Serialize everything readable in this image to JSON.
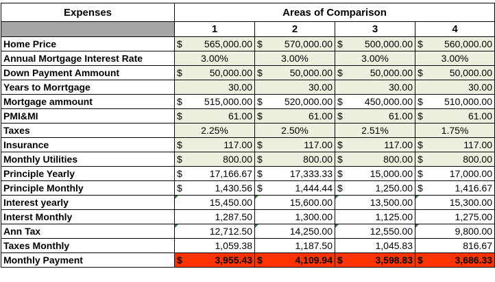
{
  "header": {
    "expenses_label": "Expenses",
    "areas_label": "Areas of Comparison",
    "columns": [
      "1",
      "2",
      "3",
      "4"
    ]
  },
  "rows": [
    {
      "label": "Home Price",
      "type": "money",
      "bg": "green",
      "cells": [
        {
          "sym": "$",
          "val": "565,000.00"
        },
        {
          "sym": "$",
          "val": "570,000.00"
        },
        {
          "sym": "$",
          "val": "500,000.00"
        },
        {
          "sym": "$",
          "val": "560,000.00"
        }
      ]
    },
    {
      "label": "Annual Mortgage Interest Rate",
      "type": "center",
      "bg": "green",
      "cells": [
        {
          "val": "3.00%"
        },
        {
          "val": "3.00%"
        },
        {
          "val": "3.00%"
        },
        {
          "val": "3.00%"
        }
      ]
    },
    {
      "label": "Down Payment Ammount",
      "type": "money",
      "bg": "green",
      "cells": [
        {
          "sym": "$",
          "val": "50,000.00"
        },
        {
          "sym": "$",
          "val": "50,000.00"
        },
        {
          "sym": "$",
          "val": "50,000.00"
        },
        {
          "sym": "$",
          "val": "50,000.00"
        }
      ]
    },
    {
      "label": "Years to Morrtgage",
      "type": "right",
      "bg": "green",
      "cells": [
        {
          "val": "30.00"
        },
        {
          "val": "30.00"
        },
        {
          "val": "30.00"
        },
        {
          "val": "30.00"
        }
      ]
    },
    {
      "label": "Mortgage ammount",
      "type": "money",
      "bg": "white",
      "cells": [
        {
          "sym": "$",
          "val": "515,000.00"
        },
        {
          "sym": "$",
          "val": "520,000.00"
        },
        {
          "sym": "$",
          "val": "450,000.00"
        },
        {
          "sym": "$",
          "val": "510,000.00"
        }
      ]
    },
    {
      "label": "PMI&MI",
      "type": "money",
      "bg": "green",
      "cells": [
        {
          "sym": "$",
          "val": "61.00"
        },
        {
          "sym": "$",
          "val": "61.00"
        },
        {
          "sym": "$",
          "val": "61.00"
        },
        {
          "sym": "$",
          "val": "61.00"
        }
      ]
    },
    {
      "label": "Taxes",
      "type": "center",
      "bg": "green",
      "cells": [
        {
          "val": "2.25%"
        },
        {
          "val": "2.50%"
        },
        {
          "val": "2.51%"
        },
        {
          "val": "1.75%"
        }
      ]
    },
    {
      "label": "Insurance",
      "type": "money",
      "bg": "green",
      "cells": [
        {
          "sym": "$",
          "val": "117.00"
        },
        {
          "sym": "$",
          "val": "117.00"
        },
        {
          "sym": "$",
          "val": "117.00"
        },
        {
          "sym": "$",
          "val": "117.00"
        }
      ]
    },
    {
      "label": "Monthly Utilities",
      "type": "money",
      "bg": "green",
      "cells": [
        {
          "sym": "$",
          "val": "800.00"
        },
        {
          "sym": "$",
          "val": "800.00"
        },
        {
          "sym": "$",
          "val": "800.00"
        },
        {
          "sym": "$",
          "val": "800.00"
        }
      ]
    },
    {
      "label": "Principle Yearly",
      "type": "money",
      "bg": "white",
      "cells": [
        {
          "sym": "$",
          "val": "17,166.67"
        },
        {
          "sym": "$",
          "val": "17,333.33"
        },
        {
          "sym": "$",
          "val": "15,000.00"
        },
        {
          "sym": "$",
          "val": "17,000.00"
        }
      ]
    },
    {
      "label": "Principle Monthly",
      "type": "money",
      "bg": "white",
      "cells": [
        {
          "sym": "$",
          "val": "1,430.56"
        },
        {
          "sym": "$",
          "val": "1,444.44"
        },
        {
          "sym": "$",
          "val": "1,250.00"
        },
        {
          "sym": "$",
          "val": "1,416.67"
        }
      ]
    },
    {
      "label": "Interest yearly",
      "type": "right",
      "bg": "white",
      "tri": true,
      "cells": [
        {
          "val": "15,450.00"
        },
        {
          "val": "15,600.00"
        },
        {
          "val": "13,500.00"
        },
        {
          "val": "15,300.00"
        }
      ]
    },
    {
      "label": "Interst Monthly",
      "type": "right",
      "bg": "white",
      "cells": [
        {
          "val": "1,287.50"
        },
        {
          "val": "1,300.00"
        },
        {
          "val": "1,125.00"
        },
        {
          "val": "1,275.00"
        }
      ]
    },
    {
      "label": "Ann Tax",
      "type": "right",
      "bg": "white",
      "tri": true,
      "cells": [
        {
          "val": "12,712.50"
        },
        {
          "val": "14,250.00"
        },
        {
          "val": "12,550.00"
        },
        {
          "val": "9,800.00"
        }
      ]
    },
    {
      "label": "Taxes Monthly",
      "type": "right",
      "bg": "white",
      "cells": [
        {
          "val": "1,059.38"
        },
        {
          "val": "1,187.50"
        },
        {
          "val": "1,045.83"
        },
        {
          "val": "816.67"
        }
      ]
    },
    {
      "label": "Monthly Payment",
      "type": "money",
      "bg": "red",
      "cells": [
        {
          "sym": "$",
          "val": "3,955.43"
        },
        {
          "sym": "$",
          "val": "4,109.94"
        },
        {
          "sym": "$",
          "val": "3,598.83"
        },
        {
          "sym": "$",
          "val": "3,686.33"
        }
      ]
    }
  ],
  "colors": {
    "input_bg": "#ebf1de",
    "total_bg": "#ff3300",
    "header_gray": "#a6a6a6"
  }
}
